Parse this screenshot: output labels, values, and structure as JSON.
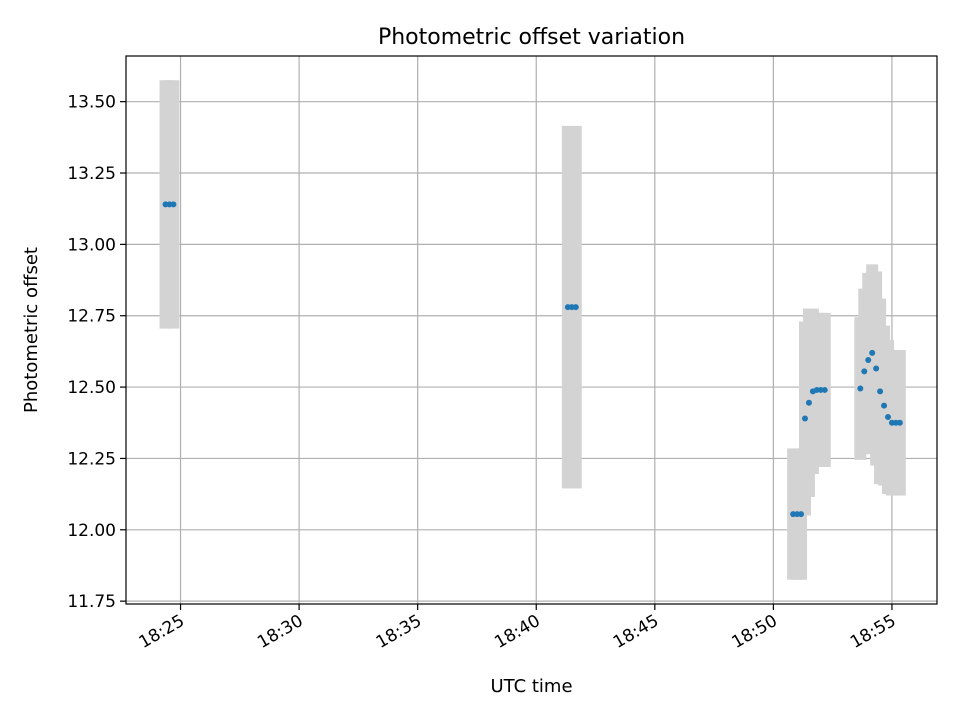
{
  "chart_data": {
    "type": "scatter",
    "title": "Photometric offset variation",
    "xlabel": "UTC time",
    "ylabel": "Photometric offset",
    "x_tick_labels": [
      "18:25",
      "18:30",
      "18:35",
      "18:40",
      "18:45",
      "18:50",
      "18:55"
    ],
    "x_tick_minutes": [
      1105,
      1110,
      1115,
      1120,
      1125,
      1130,
      1135
    ],
    "y_tick_labels": [
      "11.75",
      "12.00",
      "12.25",
      "12.50",
      "12.75",
      "13.00",
      "13.25",
      "13.50"
    ],
    "y_ticks": [
      11.75,
      12.0,
      12.25,
      12.5,
      12.75,
      13.0,
      13.25,
      13.5
    ],
    "xlim_minutes": [
      1102.7,
      1136.9
    ],
    "ylim": [
      11.74,
      13.66
    ],
    "grid": true,
    "point_color": "#1f77b4",
    "errorbar_color": "#d3d3d3",
    "points": [
      {
        "t": "18:24:22",
        "y": 13.14,
        "err": 0.435
      },
      {
        "t": "18:24:32",
        "y": 13.14,
        "err": 0.435
      },
      {
        "t": "18:24:42",
        "y": 13.14,
        "err": 0.435
      },
      {
        "t": "18:41:20",
        "y": 12.78,
        "err": 0.635
      },
      {
        "t": "18:41:30",
        "y": 12.78,
        "err": 0.635
      },
      {
        "t": "18:41:40",
        "y": 12.78,
        "err": 0.635
      },
      {
        "t": "18:50:50",
        "y": 12.055,
        "err": 0.23
      },
      {
        "t": "18:51:00",
        "y": 12.055,
        "err": 0.23
      },
      {
        "t": "18:51:10",
        "y": 12.055,
        "err": 0.23
      },
      {
        "t": "18:51:20",
        "y": 12.39,
        "err": 0.34
      },
      {
        "t": "18:51:30",
        "y": 12.445,
        "err": 0.33
      },
      {
        "t": "18:51:40",
        "y": 12.485,
        "err": 0.29
      },
      {
        "t": "18:51:50",
        "y": 12.49,
        "err": 0.27
      },
      {
        "t": "18:52:00",
        "y": 12.49,
        "err": 0.27
      },
      {
        "t": "18:52:10",
        "y": 12.49,
        "err": 0.27
      },
      {
        "t": "18:53:40",
        "y": 12.495,
        "err": 0.25
      },
      {
        "t": "18:53:50",
        "y": 12.555,
        "err": 0.29
      },
      {
        "t": "18:54:00",
        "y": 12.595,
        "err": 0.305
      },
      {
        "t": "18:54:10",
        "y": 12.62,
        "err": 0.31
      },
      {
        "t": "18:54:20",
        "y": 12.565,
        "err": 0.34
      },
      {
        "t": "18:54:30",
        "y": 12.485,
        "err": 0.325
      },
      {
        "t": "18:54:40",
        "y": 12.435,
        "err": 0.28
      },
      {
        "t": "18:54:50",
        "y": 12.395,
        "err": 0.27
      },
      {
        "t": "18:55:00",
        "y": 12.375,
        "err": 0.255
      },
      {
        "t": "18:55:10",
        "y": 12.375,
        "err": 0.255
      },
      {
        "t": "18:55:20",
        "y": 12.375,
        "err": 0.255
      }
    ]
  }
}
